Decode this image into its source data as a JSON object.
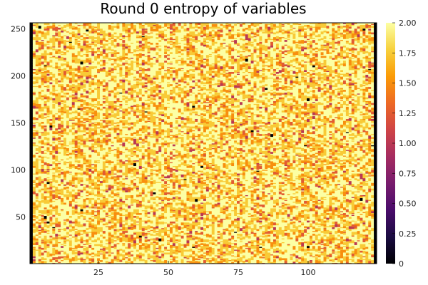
{
  "chart_data": {
    "type": "heatmap",
    "title": "Round 0 entropy of variables",
    "xlabel": "",
    "ylabel": "",
    "x_range": [
      1,
      124
    ],
    "y_range": [
      1,
      256
    ],
    "x_ticks": [
      25,
      50,
      75,
      100
    ],
    "y_ticks": [
      50,
      100,
      150,
      200,
      250
    ],
    "colorbar": {
      "min": 0,
      "max": 2,
      "ticks": [
        0,
        0.25,
        0.5,
        0.75,
        1.0,
        1.25,
        1.5,
        1.75,
        2.0
      ],
      "tick_labels": [
        "0",
        "0.25",
        "0.50",
        "0.75",
        "1.00",
        "1.25",
        "1.50",
        "1.75",
        "2.00"
      ],
      "colormap": "inferno",
      "colors": [
        "#000004",
        "#1b0c41",
        "#4a0c6b",
        "#781c6d",
        "#a52c60",
        "#cf4446",
        "#ed6925",
        "#fb9b06",
        "#f7d13d",
        "#fcffa4"
      ]
    },
    "value_distribution": {
      "dominant_level": 2.0,
      "levels": [
        2.0,
        1.75,
        1.5,
        1.25,
        1.0,
        0
      ],
      "note_on_edges": "columns 1 and 124 are entropy 0"
    },
    "grid": false,
    "legend": "none"
  }
}
